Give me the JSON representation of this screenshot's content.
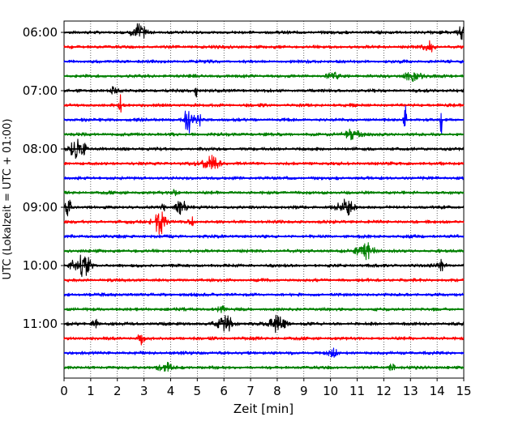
{
  "chart_data": {
    "type": "line",
    "title": "",
    "xlabel": "Zeit  [min]",
    "ylabel": "UTC (Lokalzeit = UTC + 01:00)",
    "xlim": [
      0,
      15
    ],
    "x_ticks": [
      "0",
      "1",
      "2",
      "3",
      "4",
      "5",
      "6",
      "7",
      "8",
      "9",
      "10",
      "11",
      "12",
      "13",
      "14",
      "15"
    ],
    "y_tick_labels": [
      "06:00",
      "07:00",
      "08:00",
      "09:00",
      "10:00",
      "11:00"
    ],
    "grid": "vertical dotted at each minute",
    "trace_interval_minutes": 15,
    "trace_count": 24,
    "series": [
      {
        "name": "06:00",
        "color": "#000000",
        "events": [
          [
            2.8,
            0.7,
            0.25
          ],
          [
            14.9,
            0.5,
            0.15
          ]
        ]
      },
      {
        "name": "06:15",
        "color": "#ff0000",
        "events": [
          [
            13.7,
            0.4,
            0.2
          ]
        ]
      },
      {
        "name": "06:30",
        "color": "#0000ff",
        "events": []
      },
      {
        "name": "06:45",
        "color": "#008000",
        "events": [
          [
            13.1,
            0.4,
            0.3
          ],
          [
            10.1,
            0.25,
            0.2
          ]
        ]
      },
      {
        "name": "07:00",
        "color": "#000000",
        "events": [
          [
            4.95,
            0.9,
            0.06
          ],
          [
            1.9,
            0.3,
            0.15
          ]
        ]
      },
      {
        "name": "07:15",
        "color": "#ff0000",
        "events": [
          [
            2.1,
            1.0,
            0.04
          ]
        ]
      },
      {
        "name": "07:30",
        "color": "#0000ff",
        "events": [
          [
            4.65,
            1.4,
            0.12
          ],
          [
            5.0,
            0.6,
            0.15
          ],
          [
            12.8,
            1.1,
            0.05
          ],
          [
            14.15,
            1.6,
            0.03
          ]
        ]
      },
      {
        "name": "07:45",
        "color": "#008000",
        "events": [
          [
            10.8,
            0.35,
            0.3
          ]
        ]
      },
      {
        "name": "08:00",
        "color": "#000000",
        "events": [
          [
            0.45,
            0.8,
            0.2
          ],
          [
            0.75,
            0.9,
            0.08
          ]
        ]
      },
      {
        "name": "08:15",
        "color": "#ff0000",
        "events": [
          [
            5.5,
            0.6,
            0.35
          ]
        ]
      },
      {
        "name": "08:30",
        "color": "#0000ff",
        "events": []
      },
      {
        "name": "08:45",
        "color": "#008000",
        "events": [
          [
            4.15,
            0.35,
            0.1
          ]
        ]
      },
      {
        "name": "09:00",
        "color": "#000000",
        "events": [
          [
            0.15,
            0.9,
            0.1
          ],
          [
            10.55,
            0.6,
            0.3
          ],
          [
            4.4,
            0.5,
            0.2
          ],
          [
            3.7,
            0.3,
            0.1
          ]
        ]
      },
      {
        "name": "09:15",
        "color": "#ff0000",
        "events": [
          [
            3.6,
            0.9,
            0.25
          ],
          [
            4.8,
            0.35,
            0.1
          ]
        ]
      },
      {
        "name": "09:30",
        "color": "#0000ff",
        "events": []
      },
      {
        "name": "09:45",
        "color": "#008000",
        "events": [
          [
            11.3,
            0.7,
            0.3
          ]
        ]
      },
      {
        "name": "10:00",
        "color": "#000000",
        "events": [
          [
            0.75,
            1.0,
            0.25
          ],
          [
            14.1,
            0.4,
            0.2
          ],
          [
            0.3,
            0.3,
            0.1
          ]
        ]
      },
      {
        "name": "10:15",
        "color": "#ff0000",
        "events": []
      },
      {
        "name": "10:30",
        "color": "#0000ff",
        "events": []
      },
      {
        "name": "10:45",
        "color": "#008000",
        "events": [
          [
            5.9,
            0.3,
            0.15
          ]
        ]
      },
      {
        "name": "11:00",
        "color": "#000000",
        "events": [
          [
            6.05,
            0.6,
            0.3
          ],
          [
            8.0,
            0.6,
            0.3
          ],
          [
            1.2,
            0.3,
            0.15
          ]
        ]
      },
      {
        "name": "11:15",
        "color": "#ff0000",
        "events": [
          [
            2.9,
            0.5,
            0.12
          ]
        ]
      },
      {
        "name": "11:30",
        "color": "#0000ff",
        "events": [
          [
            10.1,
            0.35,
            0.15
          ]
        ]
      },
      {
        "name": "11:45",
        "color": "#008000",
        "events": [
          [
            3.8,
            0.35,
            0.25
          ],
          [
            12.3,
            0.3,
            0.1
          ]
        ]
      }
    ]
  }
}
